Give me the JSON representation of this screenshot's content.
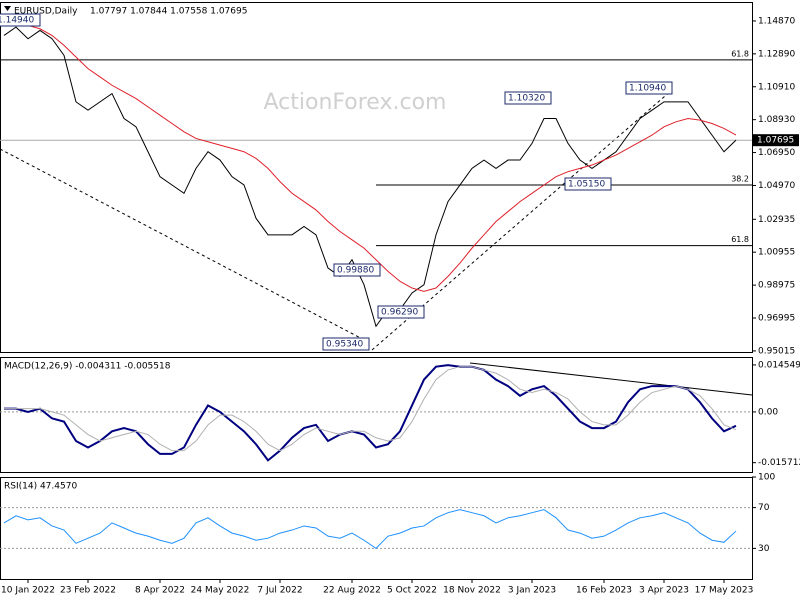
{
  "chart_data": [
    {
      "type": "line",
      "title": "EURUSD,Daily",
      "subtitle": "1.07797 1.07844 1.07558 1.07695",
      "watermark": "ActionForex.com",
      "ylim": [
        0.9495,
        1.1601
      ],
      "yticks": [
        {
          "value": 1.1487,
          "label": "1.14870"
        },
        {
          "value": 1.1289,
          "label": "1.12890"
        },
        {
          "value": 1.1091,
          "label": "1.10910"
        },
        {
          "value": 1.0893,
          "label": "1.08930"
        },
        {
          "value": 1.0695,
          "label": "1.06950"
        },
        {
          "value": 1.0497,
          "label": "1.04970"
        },
        1.02935,
        1.00955,
        0.98975,
        0.96995,
        {
          "value": 0.95015,
          "label": "0.95015"
        }
      ],
      "series": [
        {
          "color": "#000000",
          "values": [
            1.14,
            1.145,
            1.138,
            1.143,
            1.138,
            1.128,
            1.1,
            1.095,
            1.1,
            1.105,
            1.09,
            1.085,
            1.07,
            1.055,
            1.05,
            1.045,
            1.06,
            1.07,
            1.065,
            1.055,
            1.05,
            1.03,
            1.02,
            1.02,
            1.02,
            1.025,
            1.02,
            1.0,
            0.995,
            1.005,
            0.99,
            0.965,
            0.975,
            0.975,
            0.985,
            0.99,
            1.02,
            1.04,
            1.05,
            1.06,
            1.065,
            1.06,
            1.065,
            1.065,
            1.075,
            1.09,
            1.09,
            1.075,
            1.065,
            1.06,
            1.065,
            1.07,
            1.08,
            1.09,
            1.095,
            1.1,
            1.1,
            1.1,
            1.09,
            1.08,
            1.07,
            1.077
          ]
        },
        {
          "color": "#e0202a",
          "values": [
            1.148,
            1.147,
            1.146,
            1.144,
            1.14,
            1.134,
            1.127,
            1.12,
            1.115,
            1.11,
            1.106,
            1.102,
            1.097,
            1.092,
            1.087,
            1.082,
            1.078,
            1.076,
            1.074,
            1.072,
            1.07,
            1.066,
            1.06,
            1.052,
            1.045,
            1.04,
            1.035,
            1.028,
            1.022,
            1.017,
            1.012,
            1.005,
            0.998,
            0.992,
            0.988,
            0.986,
            0.988,
            0.995,
            1.003,
            1.012,
            1.02,
            1.028,
            1.034,
            1.04,
            1.045,
            1.05,
            1.055,
            1.058,
            1.06,
            1.062,
            1.065,
            1.068,
            1.072,
            1.076,
            1.08,
            1.085,
            1.088,
            1.09,
            1.089,
            1.087,
            1.084,
            1.08
          ]
        }
      ],
      "levels": [
        {
          "value": 1.1253,
          "label": "61.8"
        },
        {
          "value": 1.05,
          "label": "38.2"
        },
        {
          "value": 1.0135,
          "label": "61.8"
        }
      ],
      "last_price": 1.07695,
      "annotations": [
        "1.14940",
        "1.10320",
        "1.10940",
        "1.05150",
        "0.95340",
        "0.96290",
        "0.99880"
      ]
    },
    {
      "type": "line",
      "title": "MACD(12,26,9) -0.004311 -0.005518",
      "ylim": [
        -0.0186,
        0.017
      ],
      "yticks": [
        0.014549,
        {
          "value": 0,
          "label": "0.00"
        },
        -0.015712
      ],
      "reference_lines": [
        0
      ],
      "series": [
        {
          "color": "#000080",
          "values": [
            0.001,
            0.001,
            0.0,
            0.001,
            -0.002,
            -0.003,
            -0.009,
            -0.011,
            -0.009,
            -0.006,
            -0.005,
            -0.006,
            -0.01,
            -0.013,
            -0.013,
            -0.011,
            -0.004,
            0.002,
            0.0,
            -0.003,
            -0.006,
            -0.01,
            -0.015,
            -0.012,
            -0.008,
            -0.005,
            -0.004,
            -0.009,
            -0.007,
            -0.006,
            -0.007,
            -0.011,
            -0.01,
            -0.006,
            0.002,
            0.01,
            0.014,
            0.0145,
            0.014,
            0.014,
            0.013,
            0.01,
            0.008,
            0.005,
            0.007,
            0.008,
            0.005,
            0.001,
            -0.003,
            -0.005,
            -0.005,
            -0.003,
            0.003,
            0.007,
            0.008,
            0.008,
            0.008,
            0.007,
            0.003,
            -0.002,
            -0.006,
            -0.0043
          ]
        },
        {
          "color": "#b0b0b0",
          "values": [
            0.001,
            0.001,
            0.001,
            0.001,
            0.0,
            -0.001,
            -0.004,
            -0.007,
            -0.009,
            -0.008,
            -0.007,
            -0.006,
            -0.007,
            -0.01,
            -0.012,
            -0.012,
            -0.009,
            -0.004,
            -0.001,
            -0.001,
            -0.003,
            -0.006,
            -0.01,
            -0.012,
            -0.01,
            -0.007,
            -0.005,
            -0.006,
            -0.007,
            -0.006,
            -0.006,
            -0.008,
            -0.009,
            -0.008,
            -0.003,
            0.004,
            0.01,
            0.013,
            0.014,
            0.014,
            0.013,
            0.012,
            0.01,
            0.007,
            0.006,
            0.007,
            0.006,
            0.004,
            0.0,
            -0.003,
            -0.004,
            -0.004,
            -0.001,
            0.003,
            0.006,
            0.007,
            0.008,
            0.007,
            0.005,
            0.001,
            -0.004,
            -0.0055
          ]
        }
      ]
    },
    {
      "type": "line",
      "title": "RSI(14) 47.4570",
      "ylim": [
        0,
        100
      ],
      "yticks": [
        100,
        70,
        30
      ],
      "reference_lines": [
        70,
        30
      ],
      "categories": [
        null,
        null,
        "10 Jan 2022",
        null,
        null,
        null,
        null,
        "23 Feb 2022",
        null,
        null,
        null,
        null,
        null,
        "8 Apr 2022",
        null,
        null,
        null,
        null,
        "24 May 2022",
        null,
        null,
        null,
        null,
        "7 Jul 2022",
        null,
        null,
        null,
        null,
        null,
        "22 Aug 2022",
        null,
        null,
        null,
        null,
        "5 Oct 2022",
        null,
        null,
        null,
        null,
        "18 Nov 2022",
        null,
        null,
        null,
        null,
        "3 Jan 2023",
        null,
        null,
        null,
        null,
        null,
        "16 Feb 2023",
        null,
        null,
        null,
        null,
        "3 Apr 2023",
        null,
        null,
        null,
        null,
        "17 May 2023",
        null
      ],
      "series": [
        {
          "color": "#1e90ff",
          "values": [
            55,
            62,
            58,
            60,
            52,
            48,
            35,
            40,
            45,
            55,
            50,
            45,
            42,
            38,
            35,
            40,
            55,
            60,
            52,
            45,
            42,
            38,
            40,
            45,
            48,
            52,
            50,
            42,
            40,
            45,
            38,
            30,
            42,
            45,
            50,
            52,
            60,
            65,
            68,
            65,
            62,
            55,
            60,
            62,
            65,
            68,
            60,
            48,
            45,
            40,
            42,
            48,
            55,
            60,
            62,
            65,
            60,
            55,
            45,
            38,
            36,
            47
          ]
        }
      ]
    }
  ]
}
